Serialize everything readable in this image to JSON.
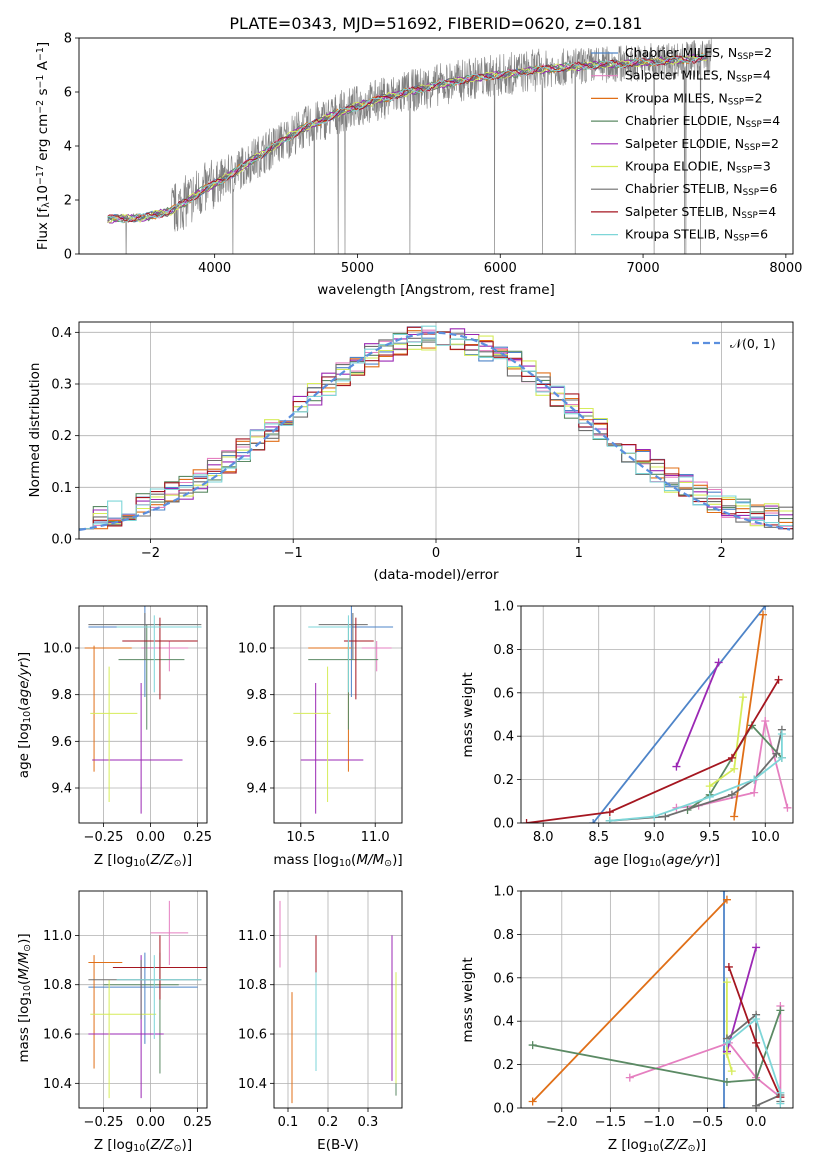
{
  "colors": {
    "chabrier_miles": "#4e84c8",
    "salpeter_miles": "#e57fc0",
    "kroupa_miles": "#e06f17",
    "chabrier_elodie": "#5b8a64",
    "salpeter_elodie": "#9b28b4",
    "kroupa_elodie": "#d6ec5a",
    "chabrier_stelib": "#6e6e6e",
    "salpeter_stelib": "#a51620",
    "kroupa_stelib": "#7ed6d8",
    "data": "#808080",
    "normal": "#5b8fde"
  },
  "figure": {
    "title": "PLATE=0343, MJD=51692, FIBERID=0620, z=0.181"
  },
  "chart_data": [
    {
      "id": "spectrum",
      "type": "line",
      "xlabel": "wavelength [Angstrom, rest frame]",
      "ylabel": "Flux [f_λ10^-17 erg cm^-2 s^-1 A^-1]",
      "xlim": [
        3050,
        8050
      ],
      "ylim": [
        0,
        8
      ],
      "xticks": [
        4000,
        5000,
        6000,
        7000,
        8000
      ],
      "yticks": [
        0,
        2,
        4,
        6,
        8
      ],
      "grid": false,
      "legend_position": "right",
      "data_x_range": [
        3250,
        7480
      ],
      "data_curve": {
        "x": [
          3250,
          3500,
          3700,
          3900,
          4100,
          4300,
          4600,
          4900,
          5200,
          5500,
          5800,
          6100,
          6400,
          6700,
          7000,
          7300,
          7450
        ],
        "y": [
          1.3,
          1.35,
          1.6,
          2.3,
          2.9,
          3.6,
          4.6,
          5.3,
          5.8,
          6.2,
          6.5,
          6.7,
          6.9,
          7.0,
          7.1,
          7.2,
          7.3
        ]
      },
      "series": [
        {
          "name": "Chabrier MILES",
          "nssp": "2",
          "color_key": "chabrier_miles"
        },
        {
          "name": "Salpeter MILES",
          "nssp": "4",
          "color_key": "salpeter_miles"
        },
        {
          "name": "Kroupa MILES",
          "nssp": "2",
          "color_key": "kroupa_miles"
        },
        {
          "name": "Chabrier ELODIE",
          "nssp": "4",
          "color_key": "chabrier_elodie"
        },
        {
          "name": "Salpeter ELODIE",
          "nssp": "2",
          "color_key": "salpeter_elodie"
        },
        {
          "name": "Kroupa ELODIE",
          "nssp": "3",
          "color_key": "kroupa_elodie"
        },
        {
          "name": "Chabrier STELIB",
          "nssp": "6",
          "color_key": "chabrier_stelib"
        },
        {
          "name": "Salpeter STELIB",
          "nssp": "4",
          "color_key": "salpeter_stelib"
        },
        {
          "name": "Kroupa STELIB",
          "nssp": "6",
          "color_key": "kroupa_stelib"
        }
      ]
    },
    {
      "id": "residuals",
      "type": "line",
      "xlabel": "(data-model)/error",
      "ylabel": "Normed distribution",
      "xlim": [
        -2.5,
        2.5
      ],
      "ylim": [
        0,
        0.42
      ],
      "xticks": [
        -2,
        -1,
        0,
        1,
        2
      ],
      "yticks": [
        0.0,
        0.1,
        0.2,
        0.3,
        0.4
      ],
      "grid": true,
      "legend_position": "top-right",
      "legend": "N(0,1)",
      "bin_width": 0.1
    },
    {
      "id": "age_vs_Z",
      "type": "scatter",
      "xlabel": "Z [log10(Z/Z_sun)]",
      "ylabel": "age [log10(age/yr)]",
      "xlim": [
        -0.38,
        0.3
      ],
      "ylim": [
        9.25,
        10.18
      ],
      "xticks": [
        -0.25,
        0.0,
        0.25
      ],
      "yticks": [
        9.4,
        9.6,
        9.8,
        10.0
      ],
      "grid": true,
      "points": [
        {
          "k": "chabrier_miles",
          "x": -0.03,
          "xe": [
            0.3,
            0.3
          ],
          "y": 10.09,
          "ye": [
            0.3,
            0.1
          ]
        },
        {
          "k": "salpeter_miles",
          "x": 0.1,
          "xe": [
            0.15,
            0.1
          ],
          "y": 10.0,
          "ye": [
            0.1,
            0.03
          ]
        },
        {
          "k": "kroupa_miles",
          "x": -0.3,
          "xe": [
            0.05,
            0.2
          ],
          "y": 10.0,
          "ye": [
            0.53,
            0.01
          ]
        },
        {
          "k": "chabrier_elodie",
          "x": -0.02,
          "xe": [
            0.15,
            0.2
          ],
          "y": 9.95,
          "ye": [
            0.3,
            0.15
          ]
        },
        {
          "k": "salpeter_elodie",
          "x": -0.05,
          "xe": [
            0.26,
            0.22
          ],
          "y": 9.52,
          "ye": [
            0.23,
            0.33
          ]
        },
        {
          "k": "kroupa_elodie",
          "x": -0.22,
          "xe": [
            0.1,
            0.15
          ],
          "y": 9.72,
          "ye": [
            0.38,
            0.2
          ]
        },
        {
          "k": "chabrier_stelib",
          "x": -0.03,
          "xe": [
            0.3,
            0.3
          ],
          "y": 10.1,
          "ye": [
            0.15,
            0.05
          ]
        },
        {
          "k": "salpeter_stelib",
          "x": 0.05,
          "xe": [
            0.2,
            0.2
          ],
          "y": 10.03,
          "ye": [
            0.25,
            0.1
          ]
        },
        {
          "k": "kroupa_stelib",
          "x": 0.02,
          "xe": [
            0.2,
            0.25
          ],
          "y": 10.09,
          "ye": [
            0.28,
            0.05
          ]
        }
      ]
    },
    {
      "id": "age_vs_mass",
      "type": "scatter",
      "xlabel": "mass [log10(M/M_sun)]",
      "ylabel": "",
      "xlim": [
        10.32,
        11.18
      ],
      "ylim": [
        9.25,
        10.18
      ],
      "xticks": [
        10.5,
        11.0
      ],
      "yticks": [
        9.4,
        9.6,
        9.8,
        10.0
      ],
      "grid": true,
      "points": [
        {
          "k": "chabrier_miles",
          "x": 10.84,
          "xe": [
            0.23,
            0.28
          ],
          "y": 10.09,
          "ye": [
            0.3,
            0.1
          ]
        },
        {
          "k": "salpeter_miles",
          "x": 11.01,
          "xe": [
            0.1,
            0.1
          ],
          "y": 10.0,
          "ye": [
            0.1,
            0.03
          ]
        },
        {
          "k": "kroupa_miles",
          "x": 10.82,
          "xe": [
            0.27,
            0.02
          ],
          "y": 10.0,
          "ye": [
            0.53,
            0.01
          ]
        },
        {
          "k": "chabrier_elodie",
          "x": 10.82,
          "xe": [
            0.27,
            0.2
          ],
          "y": 9.95,
          "ye": [
            0.3,
            0.15
          ]
        },
        {
          "k": "salpeter_elodie",
          "x": 10.6,
          "xe": [
            0.1,
            0.32
          ],
          "y": 9.52,
          "ye": [
            0.23,
            0.33
          ]
        },
        {
          "k": "kroupa_elodie",
          "x": 10.68,
          "xe": [
            0.23,
            0.02
          ],
          "y": 9.72,
          "ye": [
            0.38,
            0.2
          ]
        },
        {
          "k": "chabrier_stelib",
          "x": 10.85,
          "xe": [
            0.23,
            0.1
          ],
          "y": 10.1,
          "ye": [
            0.15,
            0.05
          ]
        },
        {
          "k": "salpeter_stelib",
          "x": 10.87,
          "xe": [
            0.08,
            0.12
          ],
          "y": 10.03,
          "ye": [
            0.25,
            0.1
          ]
        },
        {
          "k": "kroupa_stelib",
          "x": 10.82,
          "xe": [
            0.27,
            0.02
          ],
          "y": 10.09,
          "ye": [
            0.28,
            0.05
          ]
        }
      ]
    },
    {
      "id": "weight_vs_age",
      "type": "line",
      "xlabel": "age [log10(age/yr)]",
      "ylabel": "mass weight",
      "xlim": [
        7.8,
        10.25
      ],
      "ylim": [
        0,
        1.0
      ],
      "xticks": [
        8.0,
        8.5,
        9.0,
        9.5,
        10.0
      ],
      "yticks": [
        0.0,
        0.2,
        0.4,
        0.6,
        0.8,
        1.0
      ],
      "grid": true,
      "series": [
        {
          "k": "chabrier_miles",
          "x": [
            8.45,
            10.0
          ],
          "y": [
            0.0,
            1.0
          ]
        },
        {
          "k": "salpeter_miles",
          "x": [
            9.2,
            9.4,
            9.9,
            10.0,
            10.2
          ],
          "y": [
            0.07,
            0.08,
            0.14,
            0.47,
            0.07
          ]
        },
        {
          "k": "kroupa_miles",
          "x": [
            9.72,
            9.98
          ],
          "y": [
            0.03,
            0.96
          ]
        },
        {
          "k": "chabrier_elodie",
          "x": [
            9.3,
            9.5,
            9.88,
            10.15
          ],
          "y": [
            0.06,
            0.13,
            0.45,
            0.3
          ]
        },
        {
          "k": "salpeter_elodie",
          "x": [
            9.2,
            9.58
          ],
          "y": [
            0.26,
            0.74
          ]
        },
        {
          "k": "kroupa_elodie",
          "x": [
            9.5,
            9.72,
            9.8
          ],
          "y": [
            0.17,
            0.25,
            0.58
          ]
        },
        {
          "k": "chabrier_stelib",
          "x": [
            8.6,
            9.1,
            9.7,
            9.9,
            10.1,
            10.15
          ],
          "y": [
            0.01,
            0.03,
            0.13,
            0.2,
            0.32,
            0.43
          ]
        },
        {
          "k": "salpeter_stelib",
          "x": [
            7.85,
            8.6,
            9.7,
            10.12
          ],
          "y": [
            0.0,
            0.05,
            0.3,
            0.66
          ]
        },
        {
          "k": "kroupa_stelib",
          "x": [
            8.6,
            9.0,
            9.5,
            9.9,
            10.15,
            10.15
          ],
          "y": [
            0.01,
            0.03,
            0.12,
            0.2,
            0.3,
            0.41
          ]
        }
      ]
    },
    {
      "id": "mass_vs_Z",
      "type": "scatter",
      "xlabel": "Z [log10(Z/Z_sun)]",
      "ylabel": "mass [log10(M/M_sun)]",
      "xlim": [
        -0.38,
        0.3
      ],
      "ylim": [
        10.3,
        11.18
      ],
      "xticks": [
        -0.25,
        0.0,
        0.25
      ],
      "yticks": [
        10.4,
        10.6,
        10.8,
        11.0
      ],
      "grid": true,
      "points": [
        {
          "k": "chabrier_miles",
          "x": -0.03,
          "xe": [
            0.3,
            0.28
          ],
          "y": 10.79,
          "ye": [
            0.23,
            0.14
          ]
        },
        {
          "k": "salpeter_miles",
          "x": 0.1,
          "xe": [
            0.1,
            0.1
          ],
          "y": 11.01,
          "ye": [
            0.13,
            0.13
          ]
        },
        {
          "k": "kroupa_miles",
          "x": -0.3,
          "xe": [
            0.03,
            0.15
          ],
          "y": 10.89,
          "ye": [
            0.43,
            0.03
          ]
        },
        {
          "k": "chabrier_elodie",
          "x": 0.05,
          "xe": [
            0.3,
            0.1
          ],
          "y": 10.8,
          "ye": [
            0.36,
            0.13
          ]
        },
        {
          "k": "salpeter_elodie",
          "x": -0.05,
          "xe": [
            0.28,
            0.12
          ],
          "y": 10.6,
          "ye": [
            0.26,
            0.32
          ]
        },
        {
          "k": "kroupa_elodie",
          "x": -0.22,
          "xe": [
            0.1,
            0.25
          ],
          "y": 10.68,
          "ye": [
            0.34,
            0.14
          ]
        },
        {
          "k": "chabrier_stelib",
          "x": -0.05,
          "xe": [
            0.28,
            0.32
          ],
          "y": 10.82,
          "ye": [
            0.16,
            0.08
          ]
        },
        {
          "k": "salpeter_stelib",
          "x": 0.05,
          "xe": [
            0.25,
            0.25
          ],
          "y": 10.87,
          "ye": [
            0.13,
            0.13
          ]
        },
        {
          "k": "kroupa_stelib",
          "x": 0.02,
          "xe": [
            0.2,
            0.25
          ],
          "y": 10.82,
          "ye": [
            0.24,
            0.1
          ]
        }
      ]
    },
    {
      "id": "mass_vs_ebv",
      "type": "scatter",
      "xlabel": "E(B-V)",
      "ylabel": "",
      "xlim": [
        0.065,
        0.385
      ],
      "ylim": [
        10.3,
        11.18
      ],
      "xticks": [
        0.1,
        0.2,
        0.3
      ],
      "yticks": [
        10.4,
        10.6,
        10.8,
        11.0
      ],
      "grid": true,
      "points": [
        {
          "k": "chabrier_miles",
          "x": 0.17,
          "ye": [
            0.2,
            0.15
          ]
        },
        {
          "k": "salpeter_miles",
          "x": 0.08,
          "ye": [
            0.13,
            0.14
          ]
        },
        {
          "k": "kroupa_miles",
          "x": 0.11,
          "ye": [
            0.42,
            0.03
          ]
        },
        {
          "k": "chabrier_elodie",
          "x": 0.37,
          "ye": [
            0.37,
            0.13
          ]
        },
        {
          "k": "salpeter_elodie",
          "x": 0.36,
          "ye": [
            0.27,
            0.32
          ]
        },
        {
          "k": "kroupa_elodie",
          "x": 0.37,
          "ye": [
            0.32,
            0.13
          ]
        },
        {
          "k": "chabrier_stelib",
          "x": 0.17,
          "ye": [
            0.1,
            0.08
          ]
        },
        {
          "k": "salpeter_stelib",
          "x": 0.17,
          "ye": [
            0.1,
            0.12
          ]
        },
        {
          "k": "kroupa_stelib",
          "x": 0.17,
          "ye": [
            0.3,
            0.1
          ]
        }
      ]
    },
    {
      "id": "weight_vs_Z",
      "type": "line",
      "xlabel": "Z [log10(Z/Z_sun)]",
      "ylabel": "mass weight",
      "xlim": [
        -2.42,
        0.38
      ],
      "ylim": [
        0,
        1.0
      ],
      "xticks": [
        -2.0,
        -1.5,
        -1.0,
        -0.5,
        0.0
      ],
      "yticks": [
        0.0,
        0.2,
        0.4,
        0.6,
        0.8,
        1.0
      ],
      "grid": true,
      "series": [
        {
          "k": "chabrier_miles",
          "x": [
            -0.33,
            -0.33
          ],
          "y": [
            0.0,
            1.0
          ]
        },
        {
          "k": "salpeter_miles",
          "x": [
            -1.3,
            -0.28,
            0.0,
            0.25,
            0.25
          ],
          "y": [
            0.14,
            0.3,
            0.14,
            0.05,
            0.47
          ]
        },
        {
          "k": "kroupa_miles",
          "x": [
            -2.3,
            -0.3
          ],
          "y": [
            0.03,
            0.96
          ]
        },
        {
          "k": "chabrier_elodie",
          "x": [
            -2.3,
            -0.3,
            0.0,
            0.25
          ],
          "y": [
            0.29,
            0.12,
            0.13,
            0.45
          ]
        },
        {
          "k": "salpeter_elodie",
          "x": [
            -0.3,
            -0.3,
            0.0
          ],
          "y": [
            0.26,
            0.26,
            0.74
          ]
        },
        {
          "k": "kroupa_elodie",
          "x": [
            -0.3,
            -0.3,
            -0.25
          ],
          "y": [
            0.58,
            0.25,
            0.17
          ]
        },
        {
          "k": "chabrier_stelib",
          "x": [
            -0.3,
            0.0,
            0.0,
            0.25,
            0.25
          ],
          "y": [
            0.32,
            0.43,
            0.01,
            0.06,
            0.03
          ]
        },
        {
          "k": "salpeter_stelib",
          "x": [
            -0.28,
            0.0,
            0.25
          ],
          "y": [
            0.65,
            0.3,
            0.05
          ]
        },
        {
          "k": "kroupa_stelib",
          "x": [
            -0.3,
            0.0,
            0.25,
            0.25
          ],
          "y": [
            0.3,
            0.41,
            0.07,
            0.02
          ]
        }
      ]
    }
  ]
}
